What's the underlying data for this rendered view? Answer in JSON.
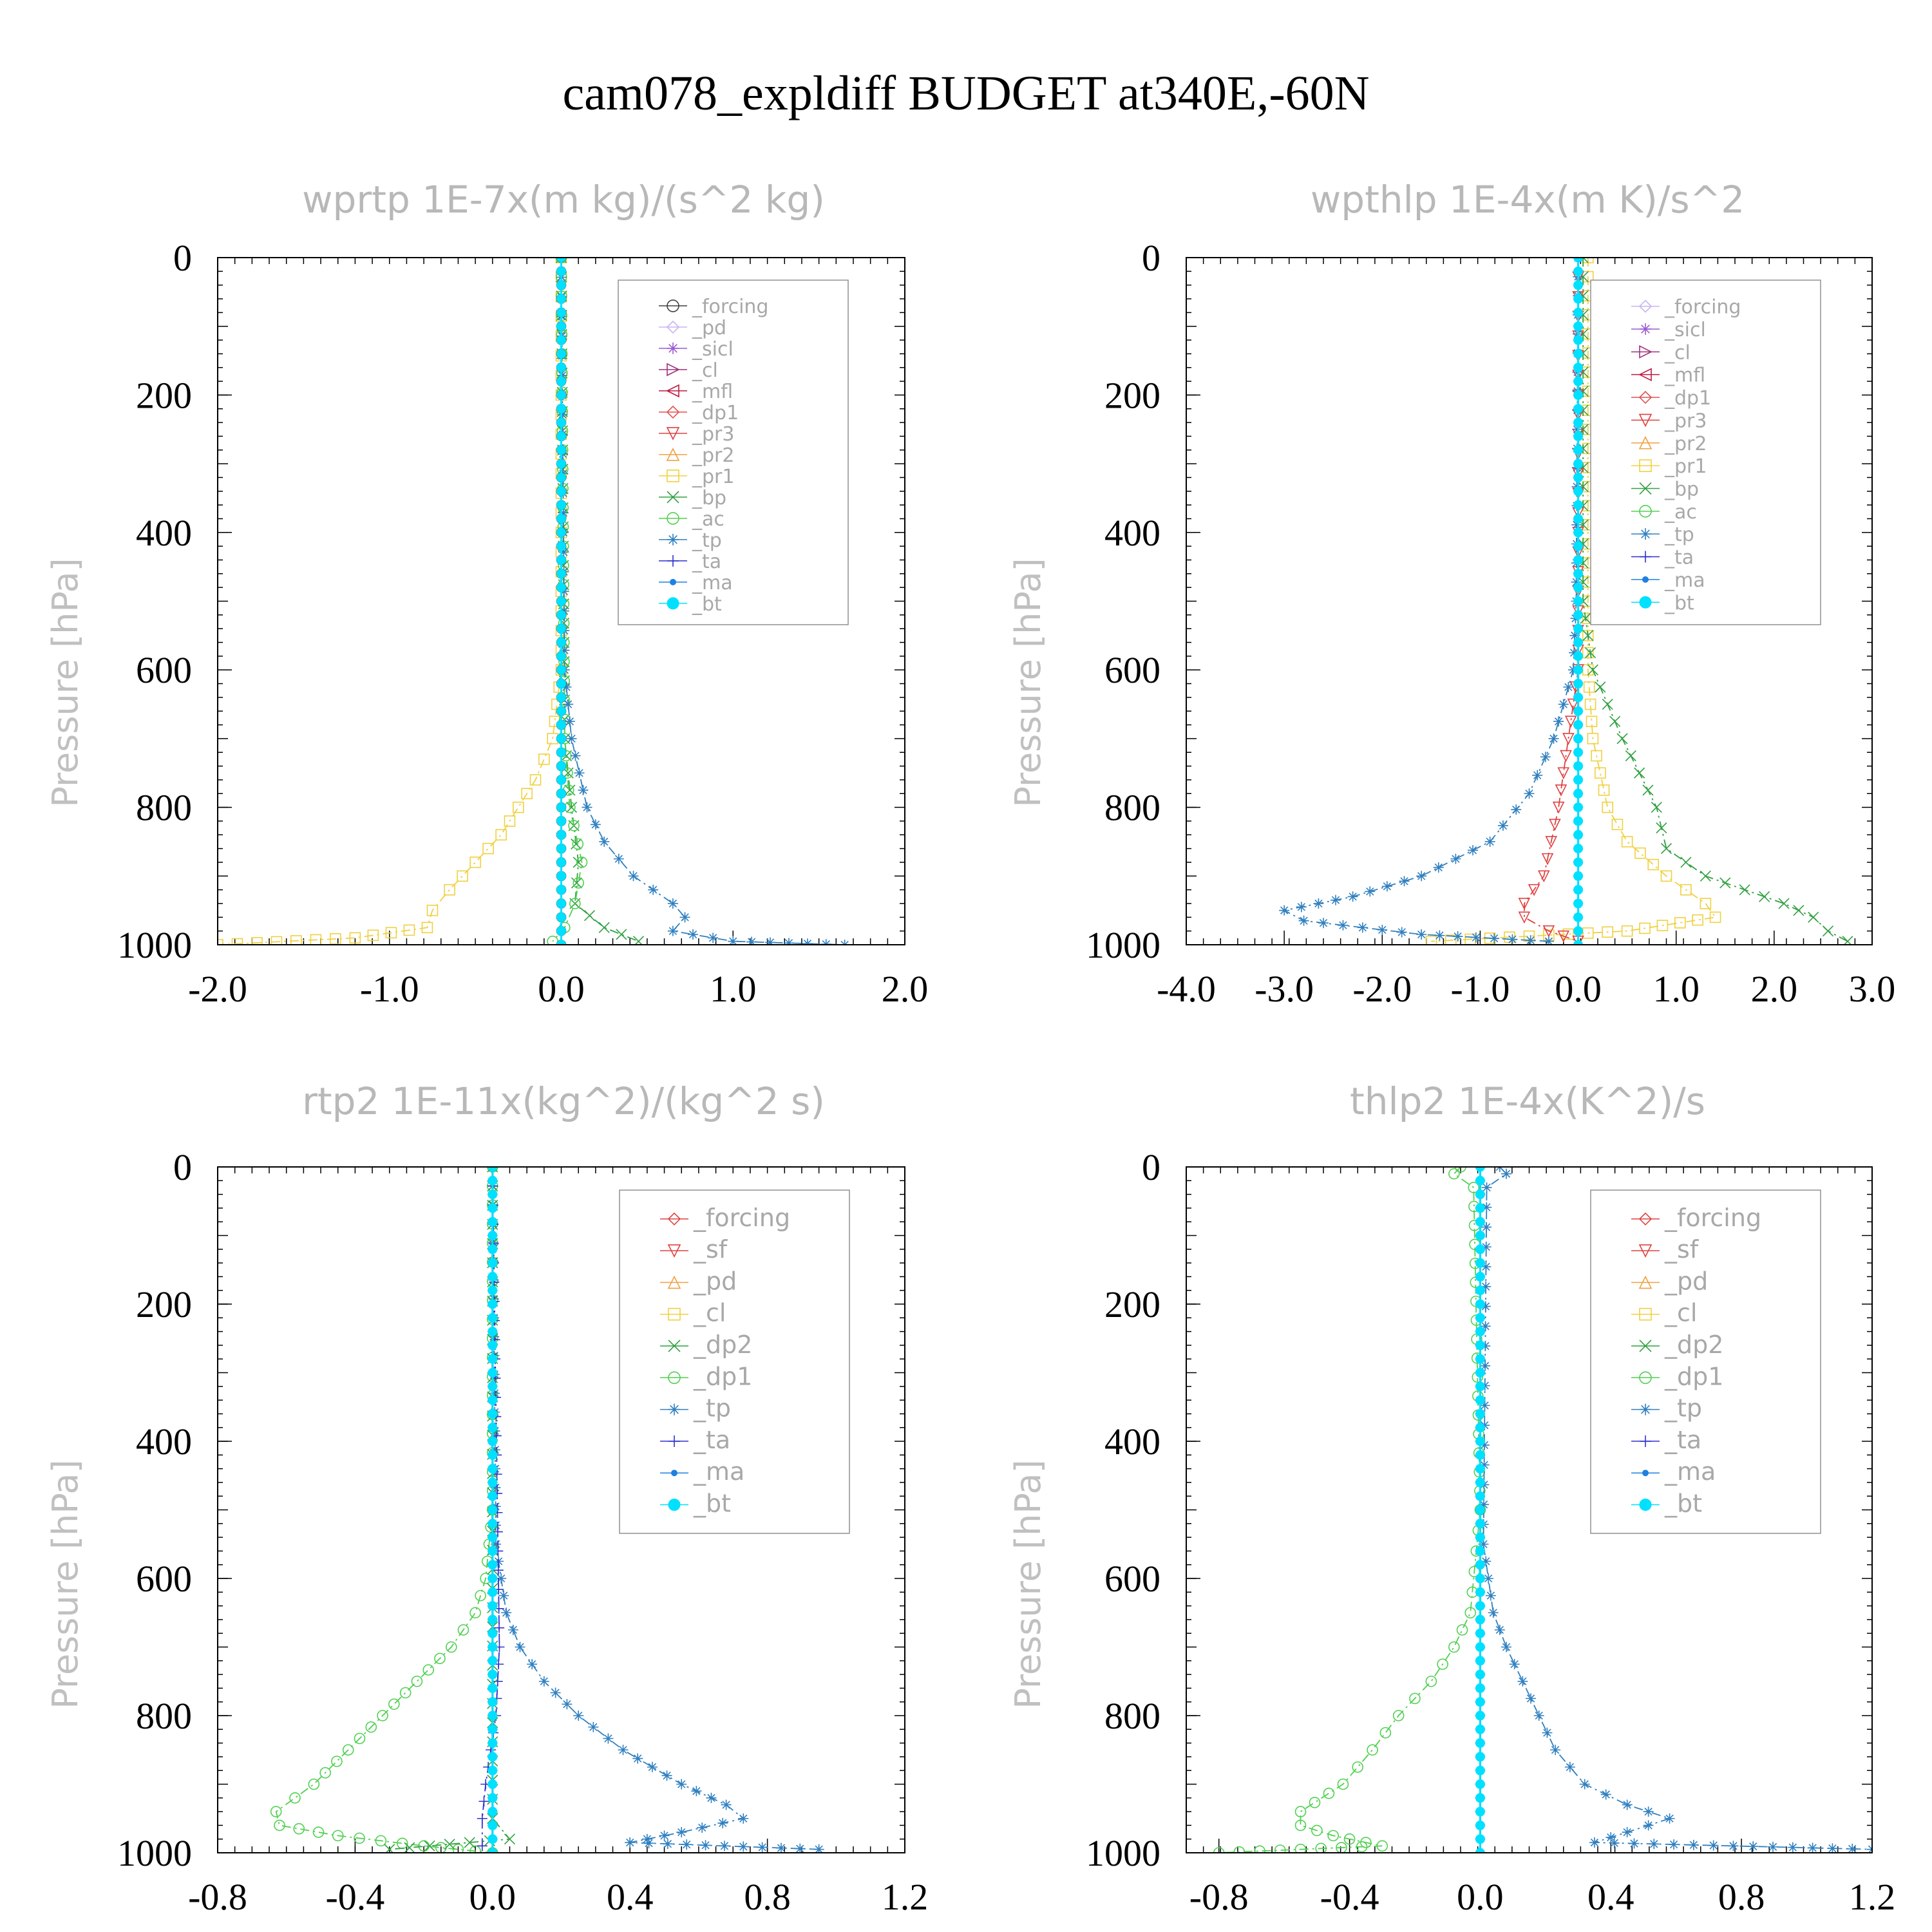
{
  "title": "cam078_expldiff  BUDGET at340E,-60N",
  "chart_data": [
    {
      "type": "line",
      "title": "wprtp   1E-7x(m kg)/(s^2 kg)",
      "ylabel": "Pressure [hPa]",
      "xlim": [
        -2.0,
        2.0
      ],
      "ylim": [
        1000,
        0
      ],
      "xticks": [
        "-2.0",
        "-1.0",
        "0.0",
        "1.0",
        "2.0"
      ],
      "xtick_values": [
        -2.0,
        -1.0,
        0.0,
        1.0,
        2.0
      ],
      "yticks": [
        "0",
        "200",
        "400",
        "600",
        "800",
        "1000"
      ],
      "ytick_values": [
        0,
        200,
        400,
        600,
        800,
        1000
      ],
      "legend_position": "top-right",
      "legend": [
        {
          "label": "_forcing",
          "color": "#404040",
          "marker": "circle"
        },
        {
          "label": "_pd",
          "color": "#c8b4f0",
          "marker": "diamond"
        },
        {
          "label": "_sicl",
          "color": "#9a5bd0",
          "marker": "star"
        },
        {
          "label": "_cl",
          "color": "#a0307a",
          "marker": "tri-right"
        },
        {
          "label": "_mfl",
          "color": "#c01840",
          "marker": "tri-left"
        },
        {
          "label": "_dp1",
          "color": "#e05050",
          "marker": "diamond"
        },
        {
          "label": "_pr3",
          "color": "#e04040",
          "marker": "tri-down"
        },
        {
          "label": "_pr2",
          "color": "#f0a040",
          "marker": "tri-up"
        },
        {
          "label": "_pr1",
          "color": "#f0d040",
          "marker": "square"
        },
        {
          "label": "_bp",
          "color": "#30a040",
          "marker": "x"
        },
        {
          "label": "_ac",
          "color": "#50d050",
          "marker": "circle"
        },
        {
          "label": "_tp",
          "color": "#3080c0",
          "marker": "asterisk"
        },
        {
          "label": "_ta",
          "color": "#3030d0",
          "marker": "plus"
        },
        {
          "label": "_ma",
          "color": "#2080e0",
          "marker": "dot"
        },
        {
          "label": "_bt",
          "color": "#00e0ff",
          "marker": "filled-circle"
        }
      ],
      "series": [
        {
          "name": "_pr1",
          "color": "#f0d040",
          "marker": "square",
          "y": [
            0,
            600,
            700,
            760,
            800,
            840,
            880,
            920,
            950,
            975,
            990,
            1000
          ],
          "x": [
            0.0,
            0.0,
            -0.05,
            -0.15,
            -0.25,
            -0.35,
            -0.5,
            -0.65,
            -0.75,
            -0.78,
            -1.2,
            -2.0
          ]
        },
        {
          "name": "_bp",
          "color": "#30a040",
          "marker": "x",
          "y": [
            0,
            700,
            800,
            880,
            940,
            975,
            995
          ],
          "x": [
            0.0,
            0.02,
            0.06,
            0.1,
            0.08,
            0.25,
            0.45
          ]
        },
        {
          "name": "_ac",
          "color": "#50d050",
          "marker": "circle",
          "y": [
            0,
            700,
            800,
            880,
            940,
            975,
            995
          ],
          "x": [
            0.0,
            0.02,
            0.05,
            0.12,
            0.08,
            0.02,
            -0.05
          ]
        },
        {
          "name": "_tp",
          "color": "#3080c0",
          "marker": "asterisk",
          "y": [
            0,
            600,
            700,
            800,
            850,
            900,
            940,
            960,
            980,
            995,
            1000
          ],
          "x": [
            0.0,
            0.02,
            0.06,
            0.15,
            0.25,
            0.42,
            0.65,
            0.72,
            0.65,
            1.0,
            1.65
          ]
        },
        {
          "name": "_forcing",
          "color": "#404040",
          "marker": "circle",
          "y": [
            0,
            1000
          ],
          "x": [
            0.0,
            0.0
          ]
        },
        {
          "name": "_bt",
          "color": "#00e0ff",
          "marker": "filled-circle",
          "y": [
            0,
            1000
          ],
          "x": [
            0.0,
            0.0
          ]
        }
      ]
    },
    {
      "type": "line",
      "title": "wpthlp   1E-4x(m K)/s^2",
      "ylabel": "Pressure [hPa]",
      "xlim": [
        -4.0,
        3.0
      ],
      "ylim": [
        1000,
        0
      ],
      "xticks": [
        "-4.0",
        "-3.0",
        "-2.0",
        "-1.0",
        "0.0",
        "1.0",
        "2.0",
        "3.0"
      ],
      "xtick_values": [
        -4.0,
        -3.0,
        -2.0,
        -1.0,
        0.0,
        1.0,
        2.0,
        3.0
      ],
      "yticks": [
        "0",
        "200",
        "400",
        "600",
        "800",
        "1000"
      ],
      "ytick_values": [
        0,
        200,
        400,
        600,
        800,
        1000
      ],
      "legend_position": "top-right",
      "legend": [
        {
          "label": "_forcing",
          "color": "#c8b4f0",
          "marker": "diamond"
        },
        {
          "label": "_sicl",
          "color": "#9a5bd0",
          "marker": "star"
        },
        {
          "label": "_cl",
          "color": "#a0307a",
          "marker": "tri-right"
        },
        {
          "label": "_mfl",
          "color": "#c01840",
          "marker": "tri-left"
        },
        {
          "label": "_dp1",
          "color": "#e05050",
          "marker": "diamond"
        },
        {
          "label": "_pr3",
          "color": "#e04040",
          "marker": "tri-down"
        },
        {
          "label": "_pr2",
          "color": "#f0a040",
          "marker": "tri-up"
        },
        {
          "label": "_pr1",
          "color": "#f0d040",
          "marker": "square"
        },
        {
          "label": "_bp",
          "color": "#30a040",
          "marker": "x"
        },
        {
          "label": "_ac",
          "color": "#50d050",
          "marker": "circle"
        },
        {
          "label": "_tp",
          "color": "#3080c0",
          "marker": "asterisk"
        },
        {
          "label": "_ta",
          "color": "#3030d0",
          "marker": "plus"
        },
        {
          "label": "_ma",
          "color": "#2080e0",
          "marker": "dot"
        },
        {
          "label": "_bt",
          "color": "#00e0ff",
          "marker": "filled-circle"
        }
      ],
      "series": [
        {
          "name": "_pr1",
          "color": "#f0d040",
          "marker": "square",
          "y": [
            0,
            500,
            600,
            700,
            800,
            850,
            900,
            940,
            960,
            980,
            995
          ],
          "x": [
            0.1,
            0.1,
            0.1,
            0.15,
            0.3,
            0.5,
            0.9,
            1.3,
            1.4,
            0.5,
            -1.5
          ]
        },
        {
          "name": "_bp",
          "color": "#30a040",
          "marker": "x",
          "y": [
            0,
            500,
            600,
            700,
            800,
            860,
            900,
            940,
            960,
            980,
            995
          ],
          "x": [
            0.05,
            0.05,
            0.15,
            0.45,
            0.8,
            0.9,
            1.3,
            2.1,
            2.4,
            2.55,
            2.75
          ]
        },
        {
          "name": "_pr3",
          "color": "#e04040",
          "marker": "tri-down",
          "y": [
            0,
            600,
            700,
            800,
            900,
            940,
            960,
            980,
            995
          ],
          "x": [
            0.0,
            0.0,
            -0.1,
            -0.2,
            -0.35,
            -0.55,
            -0.55,
            -0.3,
            0.0
          ]
        },
        {
          "name": "_tp",
          "color": "#3080c0",
          "marker": "asterisk",
          "y": [
            0,
            500,
            600,
            700,
            780,
            850,
            900,
            930,
            950,
            965,
            985,
            995
          ],
          "x": [
            0.0,
            -0.02,
            -0.05,
            -0.25,
            -0.5,
            -0.9,
            -1.6,
            -2.3,
            -3.0,
            -2.8,
            -1.6,
            -0.3
          ]
        },
        {
          "name": "_forcing",
          "color": "#c8b4f0",
          "marker": "diamond",
          "y": [
            0,
            1000
          ],
          "x": [
            0.0,
            0.0
          ]
        },
        {
          "name": "_bt",
          "color": "#00e0ff",
          "marker": "filled-circle",
          "y": [
            0,
            1000
          ],
          "x": [
            0.0,
            0.0
          ]
        }
      ]
    },
    {
      "type": "line",
      "title": "rtp2   1E-11x(kg^2)/(kg^2 s)",
      "ylabel": "Pressure [hPa]",
      "xlim": [
        -0.8,
        1.2
      ],
      "ylim": [
        1000,
        0
      ],
      "xticks": [
        "-0.8",
        "-0.4",
        "0.0",
        "0.4",
        "0.8",
        "1.2"
      ],
      "xtick_values": [
        -0.8,
        -0.4,
        0.0,
        0.4,
        0.8,
        1.2
      ],
      "yticks": [
        "0",
        "200",
        "400",
        "600",
        "800",
        "1000"
      ],
      "ytick_values": [
        0,
        200,
        400,
        600,
        800,
        1000
      ],
      "legend_position": "top-right",
      "legend": [
        {
          "label": "_forcing",
          "color": "#e04040",
          "marker": "diamond"
        },
        {
          "label": "_sf",
          "color": "#e04040",
          "marker": "tri-down"
        },
        {
          "label": "_pd",
          "color": "#f0a040",
          "marker": "tri-up"
        },
        {
          "label": "_cl",
          "color": "#f0d040",
          "marker": "square"
        },
        {
          "label": "_dp2",
          "color": "#30a040",
          "marker": "x"
        },
        {
          "label": "_dp1",
          "color": "#50d050",
          "marker": "circle"
        },
        {
          "label": "_tp",
          "color": "#3080c0",
          "marker": "asterisk"
        },
        {
          "label": "_ta",
          "color": "#3030d0",
          "marker": "plus"
        },
        {
          "label": "_ma",
          "color": "#2080e0",
          "marker": "dot"
        },
        {
          "label": "_bt",
          "color": "#00e0ff",
          "marker": "filled-circle"
        }
      ],
      "series": [
        {
          "name": "_dp1",
          "color": "#50d050",
          "marker": "circle",
          "y": [
            0,
            500,
            600,
            650,
            700,
            750,
            800,
            850,
            900,
            940,
            960,
            975,
            990,
            1000
          ],
          "x": [
            0.0,
            0.0,
            -0.02,
            -0.05,
            -0.12,
            -0.22,
            -0.32,
            -0.42,
            -0.52,
            -0.63,
            -0.62,
            -0.45,
            -0.2,
            0.0
          ]
        },
        {
          "name": "_tp",
          "color": "#3080c0",
          "marker": "asterisk",
          "y": [
            0,
            550,
            650,
            700,
            750,
            800,
            850,
            900,
            930,
            950,
            970,
            985,
            995
          ],
          "x": [
            0.0,
            0.01,
            0.04,
            0.08,
            0.15,
            0.25,
            0.38,
            0.55,
            0.68,
            0.73,
            0.55,
            0.4,
            0.95
          ]
        },
        {
          "name": "_ta",
          "color": "#3030d0",
          "marker": "plus",
          "y": [
            0,
            700,
            800,
            900,
            950,
            990
          ],
          "x": [
            0.0,
            0.02,
            0.01,
            -0.02,
            -0.03,
            -0.03
          ]
        },
        {
          "name": "_dp2",
          "color": "#30a040",
          "marker": "x",
          "y": [
            0,
            950,
            980,
            995
          ],
          "x": [
            0.0,
            0.0,
            0.05,
            -0.3
          ]
        },
        {
          "name": "_forcing",
          "color": "#e04040",
          "marker": "diamond",
          "y": [
            0,
            1000
          ],
          "x": [
            0.0,
            0.0
          ]
        },
        {
          "name": "_bt",
          "color": "#00e0ff",
          "marker": "filled-circle",
          "y": [
            0,
            1000
          ],
          "x": [
            0.0,
            0.0
          ]
        }
      ]
    },
    {
      "type": "line",
      "title": "thlp2   1E-4x(K^2)/s",
      "ylabel": "Pressure [hPa]",
      "xlim": [
        -0.9,
        1.2
      ],
      "ylim": [
        1000,
        0
      ],
      "xticks": [
        "-0.8",
        "-0.4",
        "0.0",
        "0.4",
        "0.8",
        "1.2"
      ],
      "xtick_values": [
        -0.8,
        -0.4,
        0.0,
        0.4,
        0.8,
        1.2
      ],
      "yticks": [
        "0",
        "200",
        "400",
        "600",
        "800",
        "1000"
      ],
      "ytick_values": [
        0,
        200,
        400,
        600,
        800,
        1000
      ],
      "legend_position": "top-right",
      "legend": [
        {
          "label": "_forcing",
          "color": "#e04040",
          "marker": "diamond"
        },
        {
          "label": "_sf",
          "color": "#e04040",
          "marker": "tri-down"
        },
        {
          "label": "_pd",
          "color": "#f0a040",
          "marker": "tri-up"
        },
        {
          "label": "_cl",
          "color": "#f0d040",
          "marker": "square"
        },
        {
          "label": "_dp2",
          "color": "#30a040",
          "marker": "x"
        },
        {
          "label": "_dp1",
          "color": "#50d050",
          "marker": "circle"
        },
        {
          "label": "_tp",
          "color": "#3080c0",
          "marker": "asterisk"
        },
        {
          "label": "_ta",
          "color": "#3030d0",
          "marker": "plus"
        },
        {
          "label": "_ma",
          "color": "#2080e0",
          "marker": "dot"
        },
        {
          "label": "_bt",
          "color": "#00e0ff",
          "marker": "filled-circle"
        }
      ],
      "series": [
        {
          "name": "_dp1",
          "color": "#50d050",
          "marker": "circle",
          "y": [
            0,
            10,
            30,
            500,
            650,
            700,
            750,
            800,
            850,
            900,
            940,
            960,
            975,
            990,
            1000
          ],
          "x": [
            -0.06,
            -0.08,
            -0.02,
            0.0,
            -0.03,
            -0.08,
            -0.15,
            -0.25,
            -0.33,
            -0.42,
            -0.55,
            -0.55,
            -0.45,
            -0.3,
            -0.8
          ]
        },
        {
          "name": "_tp",
          "color": "#3080c0",
          "marker": "asterisk",
          "y": [
            0,
            10,
            30,
            550,
            650,
            700,
            750,
            800,
            850,
            900,
            930,
            950,
            970,
            985,
            995
          ],
          "x": [
            0.06,
            0.08,
            0.02,
            0.01,
            0.04,
            0.08,
            0.13,
            0.18,
            0.23,
            0.32,
            0.45,
            0.58,
            0.45,
            0.35,
            1.2
          ]
        },
        {
          "name": "_forcing",
          "color": "#e04040",
          "marker": "diamond",
          "y": [
            0,
            1000
          ],
          "x": [
            0.0,
            0.0
          ]
        },
        {
          "name": "_bt",
          "color": "#00e0ff",
          "marker": "filled-circle",
          "y": [
            0,
            1000
          ],
          "x": [
            0.0,
            0.0
          ]
        }
      ]
    }
  ]
}
